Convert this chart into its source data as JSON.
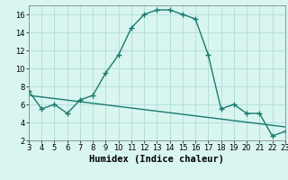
{
  "x": [
    3,
    4,
    5,
    6,
    7,
    8,
    9,
    10,
    11,
    12,
    13,
    14,
    15,
    16,
    17,
    18,
    19,
    20,
    21,
    22,
    23
  ],
  "y": [
    7.5,
    5.5,
    6.0,
    5.0,
    6.5,
    7.0,
    9.5,
    11.5,
    14.5,
    16.0,
    16.5,
    16.5,
    16.0,
    15.5,
    11.5,
    5.5,
    6.0,
    5.0,
    5.0,
    2.5,
    3.0
  ],
  "trend_x": [
    3,
    23
  ],
  "trend_y": [
    7.0,
    3.5
  ],
  "line_color": "#1a7a6e",
  "bg_color": "#d8f5f0",
  "grid_color": "#b0ddd8",
  "xlabel": "Humidex (Indice chaleur)",
  "xlim": [
    3,
    23
  ],
  "ylim": [
    2,
    17
  ],
  "yticks": [
    2,
    4,
    6,
    8,
    10,
    12,
    14,
    16
  ],
  "xticks": [
    3,
    4,
    5,
    6,
    7,
    8,
    9,
    10,
    11,
    12,
    13,
    14,
    15,
    16,
    17,
    18,
    19,
    20,
    21,
    22,
    23
  ],
  "marker_size": 2.5,
  "line_width": 1.0,
  "xlabel_fontsize": 7.5,
  "tick_fontsize": 6.0
}
